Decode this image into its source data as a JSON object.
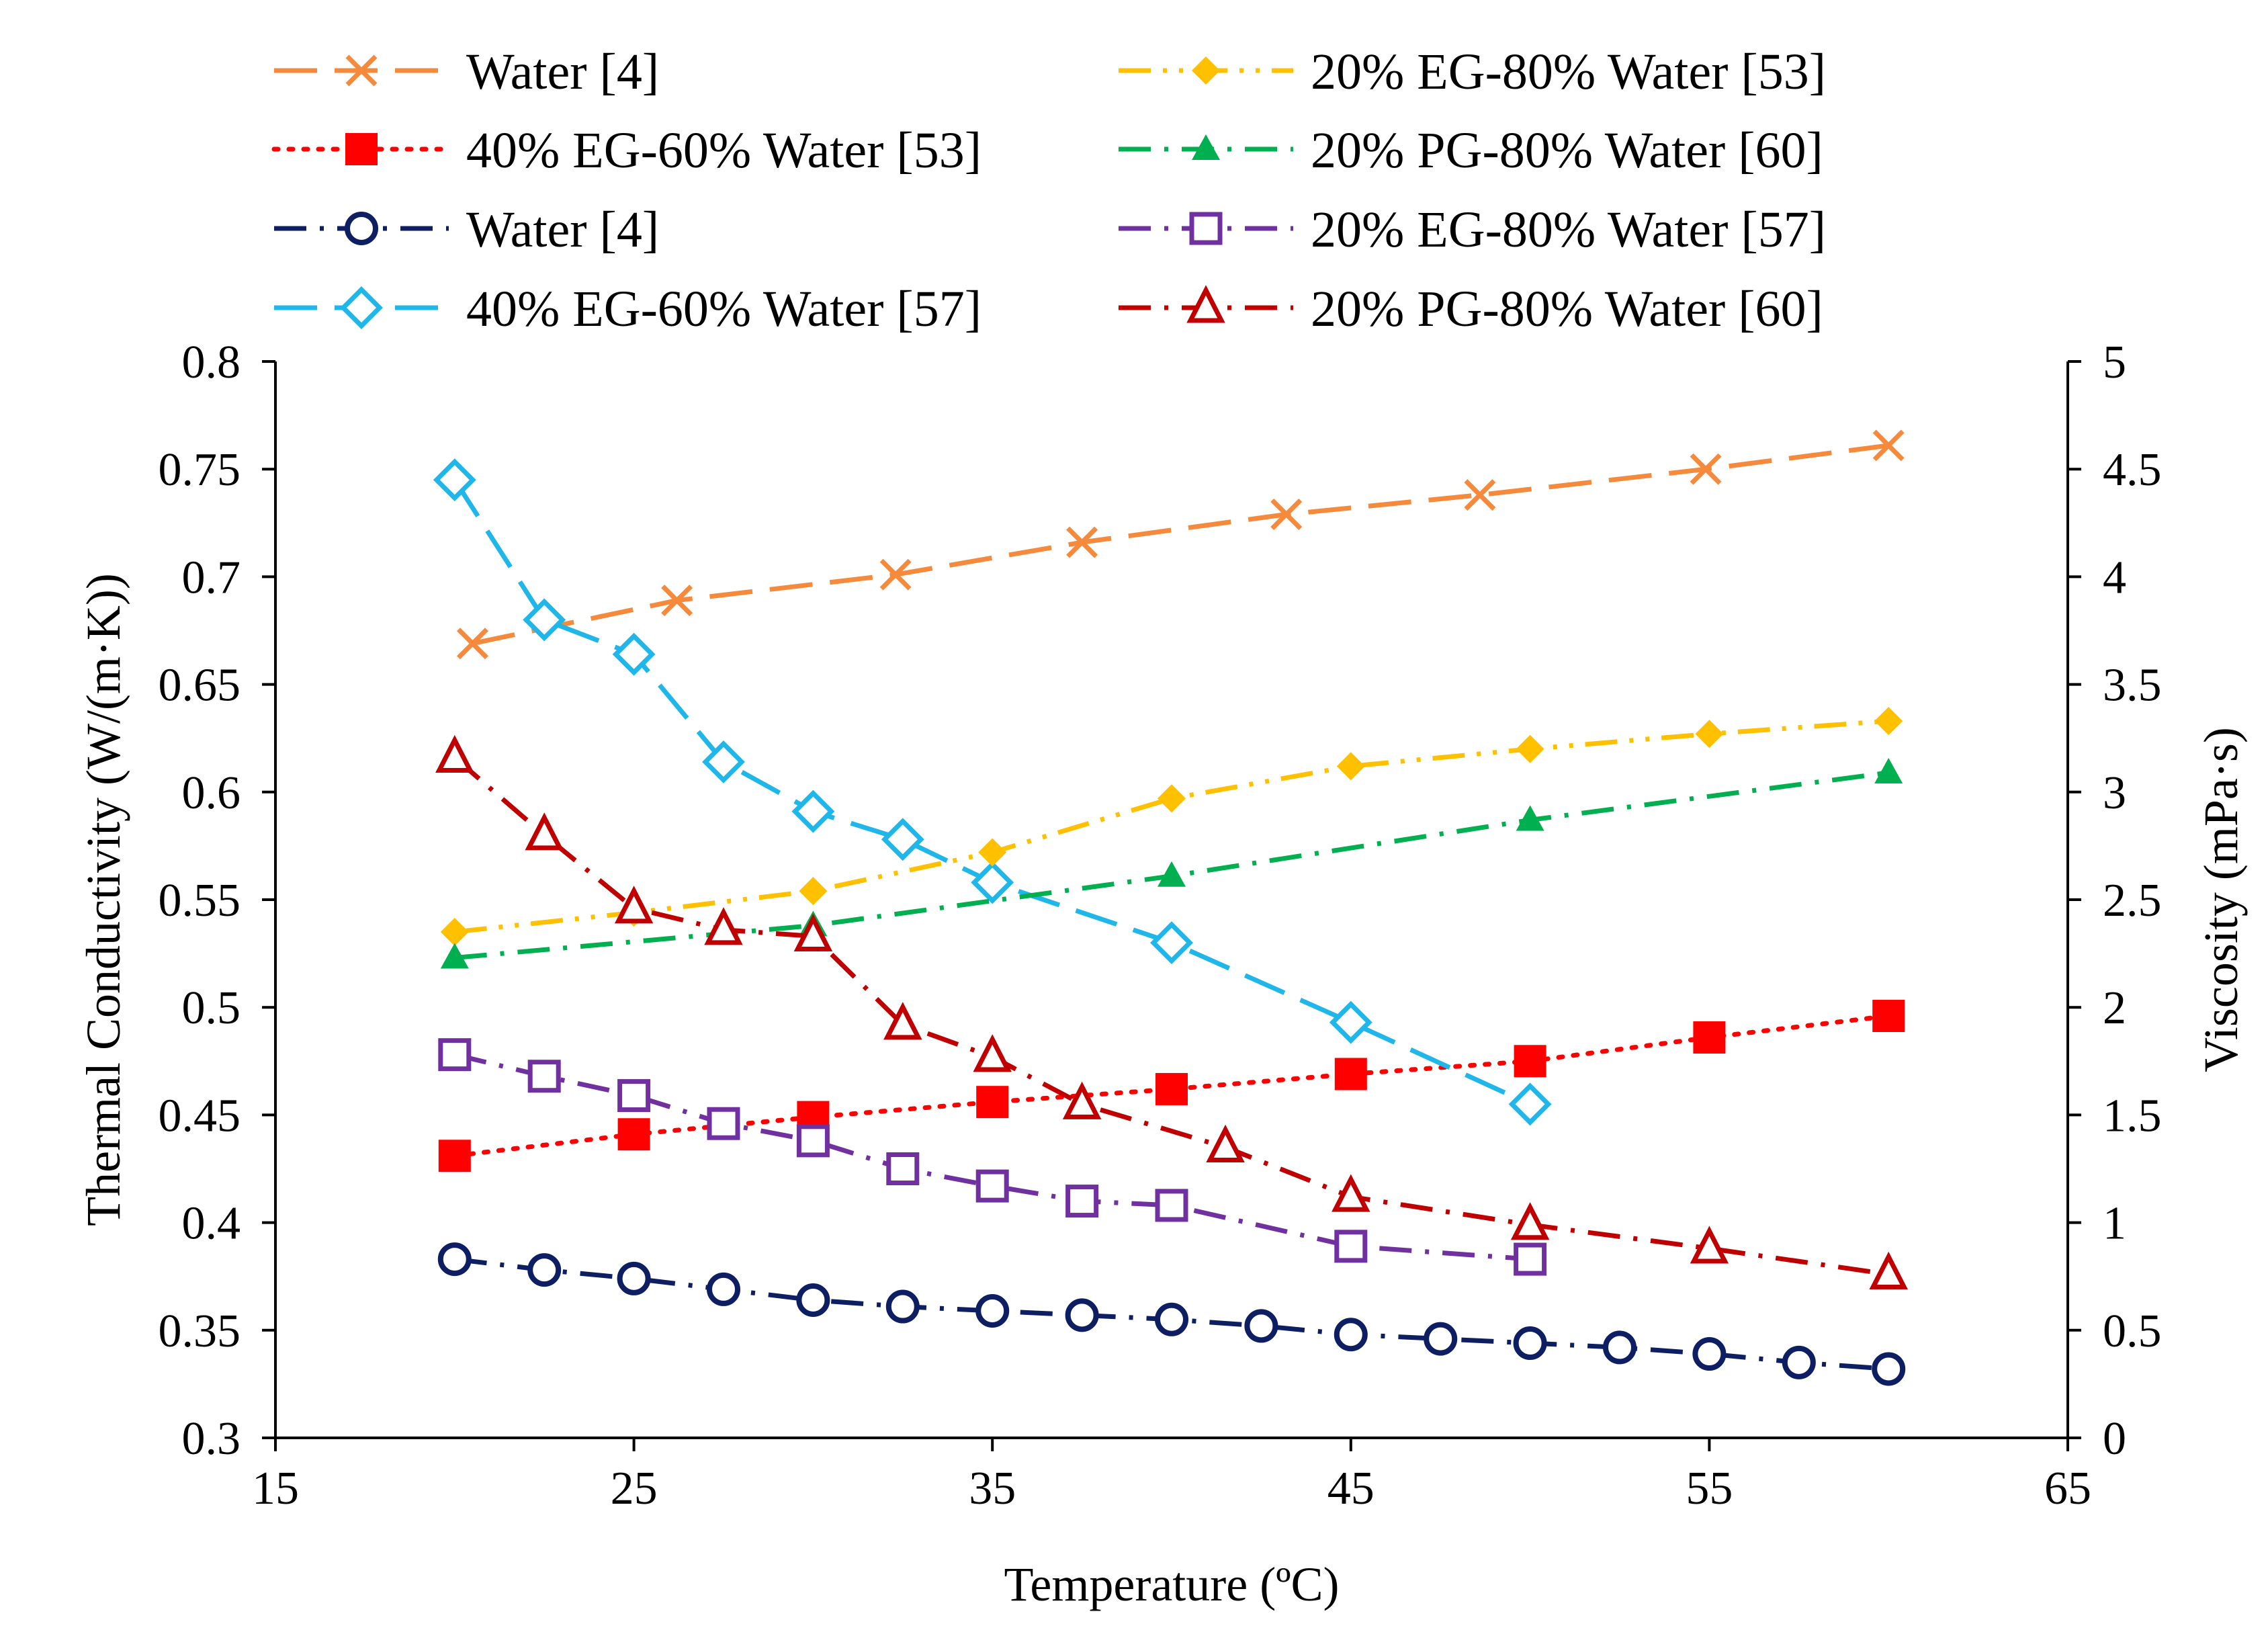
{
  "chart_data": {
    "type": "line",
    "xlabel": "Temperature (ºC)",
    "ylabel_left": "Thermal Conductivity (W/(m·K))",
    "ylabel_right": "Viscosity (mPa·s)",
    "xlim": [
      15,
      65
    ],
    "ylim_left": [
      0.3,
      0.8
    ],
    "ylim_right": [
      0,
      5
    ],
    "x_ticks": [
      15,
      25,
      35,
      45,
      55,
      65
    ],
    "y_left_ticks": [
      0.3,
      0.35,
      0.4,
      0.45,
      0.5,
      0.55,
      0.6,
      0.65,
      0.7,
      0.75,
      0.8
    ],
    "y_right_ticks": [
      0,
      0.5,
      1,
      1.5,
      2,
      2.5,
      3,
      3.5,
      4,
      4.5,
      5
    ],
    "x_tick_labels": [
      "15",
      "25",
      "35",
      "45",
      "55",
      "65"
    ],
    "y_left_tick_labels": [
      "0.3",
      "0.35",
      "0.4",
      "0.45",
      "0.5",
      "0.55",
      "0.6",
      "0.65",
      "0.7",
      "0.75",
      "0.8"
    ],
    "y_right_tick_labels": [
      "0",
      "0.5",
      "1",
      "1.5",
      "2",
      "2.5",
      "3",
      "3.5",
      "4",
      "4.5",
      "5"
    ],
    "series": [
      {
        "name": "Water [4]",
        "axis": "left",
        "color": "#F58A3C",
        "marker": "x",
        "line": "longdash",
        "x": [
          20.5,
          26.2,
          32.3,
          37.5,
          43.2,
          48.6,
          54.9,
          60
        ],
        "y": [
          0.669,
          0.689,
          0.701,
          0.716,
          0.729,
          0.738,
          0.75,
          0.761
        ]
      },
      {
        "name": "40% EG-60% Water [53]",
        "axis": "left",
        "color": "#FF0000",
        "marker": "square-filled",
        "line": "dot",
        "x": [
          20,
          25,
          30,
          35,
          40,
          45,
          50,
          55,
          60
        ],
        "y": [
          0.431,
          0.441,
          0.449,
          0.456,
          0.462,
          0.469,
          0.475,
          0.486,
          0.496
        ]
      },
      {
        "name": "Water [4]",
        "axis": "right",
        "color": "#0D1E62",
        "marker": "circle-open",
        "line": "dashdot",
        "x": [
          20,
          22.5,
          25,
          27.5,
          30,
          32.5,
          35,
          37.5,
          40,
          42.5,
          45,
          47.5,
          50,
          52.5,
          55,
          57.5,
          60
        ],
        "y": [
          0.83,
          0.78,
          0.74,
          0.69,
          0.64,
          0.61,
          0.59,
          0.57,
          0.55,
          0.52,
          0.48,
          0.46,
          0.44,
          0.42,
          0.39,
          0.35,
          0.32
        ]
      },
      {
        "name": "40% EG-60% Water [57]",
        "axis": "right",
        "color": "#1FB6EA",
        "marker": "diamond-open",
        "line": "longdash",
        "x": [
          20,
          22.5,
          25,
          27.5,
          30,
          32.5,
          35,
          40,
          45,
          50
        ],
        "y": [
          4.45,
          3.8,
          3.64,
          3.14,
          2.91,
          2.78,
          2.58,
          2.3,
          1.93,
          1.55
        ]
      },
      {
        "name": "20% EG-80% Water [53]",
        "axis": "left",
        "color": "#FFC000",
        "marker": "diamond-filled",
        "line": "dashdotdot",
        "x": [
          20,
          25,
          30,
          35,
          40,
          45,
          50,
          55,
          60
        ],
        "y": [
          0.535,
          0.544,
          0.554,
          0.572,
          0.597,
          0.612,
          0.62,
          0.627,
          0.633
        ]
      },
      {
        "name": "20% PG-80% Water [60]",
        "axis": "left",
        "color": "#00B050",
        "marker": "triangle-filled",
        "line": "dashdot",
        "x": [
          20,
          30,
          40,
          50,
          60
        ],
        "y": [
          0.523,
          0.538,
          0.561,
          0.587,
          0.609
        ]
      },
      {
        "name": "20% EG-80% Water [57]",
        "axis": "right",
        "color": "#7030A0",
        "marker": "square-open",
        "line": "dashdot",
        "x": [
          20,
          22.5,
          25,
          27.5,
          30,
          32.5,
          35,
          37.5,
          40,
          45,
          50
        ],
        "y": [
          1.78,
          1.68,
          1.59,
          1.46,
          1.38,
          1.25,
          1.17,
          1.1,
          1.08,
          0.89,
          0.83
        ]
      },
      {
        "name": "20% PG-80% Water [60]",
        "axis": "right",
        "color": "#C00000",
        "marker": "triangle-open",
        "line": "dashdot",
        "x": [
          20,
          22.5,
          25,
          27.5,
          30,
          32.5,
          35,
          37.5,
          41.5,
          45,
          50,
          55,
          60
        ],
        "y": [
          3.16,
          2.8,
          2.46,
          2.36,
          2.33,
          1.92,
          1.77,
          1.55,
          1.35,
          1.12,
          0.99,
          0.88,
          0.76
        ]
      }
    ]
  }
}
